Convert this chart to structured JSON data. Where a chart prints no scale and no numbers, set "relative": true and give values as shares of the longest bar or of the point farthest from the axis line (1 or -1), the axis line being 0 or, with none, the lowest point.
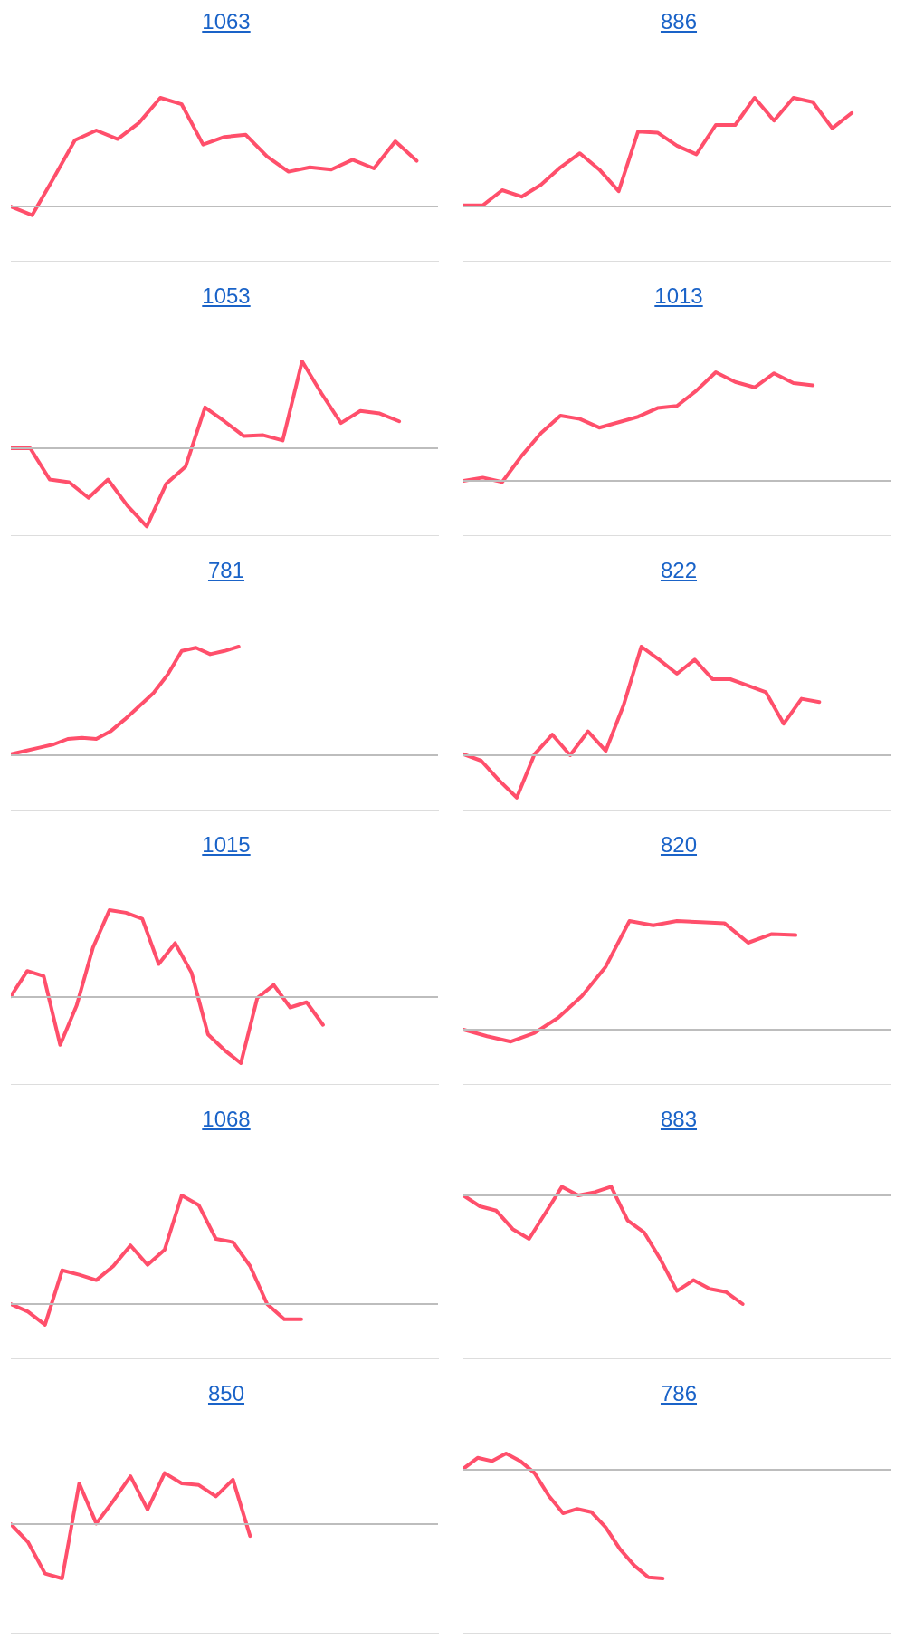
{
  "chart_data": [
    {
      "type": "line",
      "title": "1063",
      "relative": true,
      "color": "#ff4f6b",
      "categories": [
        null,
        null,
        null,
        null,
        null,
        null,
        null,
        null,
        null,
        null,
        null,
        null,
        null,
        null,
        null,
        null,
        null,
        null,
        null,
        null,
        null
      ],
      "values": [
        0,
        -0.08,
        0.26,
        0.61,
        0.7,
        0.62,
        0.77,
        1,
        0.94,
        0.57,
        0.64,
        0.66,
        0.46,
        0.32,
        0.36,
        0.34,
        0.43,
        0.35,
        0.6,
        0.42,
        null
      ]
    },
    {
      "type": "line",
      "title": "886",
      "relative": true,
      "color": "#ff4f6b",
      "categories": [
        null,
        null,
        null,
        null,
        null,
        null,
        null,
        null,
        null,
        null,
        null,
        null,
        null,
        null,
        null,
        null,
        null,
        null,
        null,
        null,
        null,
        null,
        null
      ],
      "values": [
        0.01,
        0.01,
        0.15,
        0.09,
        0.2,
        0.36,
        0.49,
        0.34,
        0.14,
        0.69,
        0.68,
        0.56,
        0.48,
        0.75,
        0.75,
        1,
        0.79,
        1,
        0.96,
        0.72,
        0.86,
        null,
        null
      ]
    },
    {
      "type": "line",
      "title": "1053",
      "relative": true,
      "color": "#ff4f6b",
      "categories": [
        null,
        null,
        null,
        null,
        null,
        null,
        null,
        null,
        null,
        null,
        null,
        null,
        null,
        null,
        null,
        null,
        null,
        null,
        null,
        null,
        null,
        null,
        null
      ],
      "values": [
        0,
        0,
        -0.36,
        -0.39,
        -0.57,
        -0.36,
        -0.66,
        -0.9,
        -0.41,
        -0.21,
        0.47,
        0.31,
        0.14,
        0.15,
        0.09,
        1,
        0.63,
        0.29,
        0.43,
        0.4,
        0.31,
        null,
        null
      ]
    },
    {
      "type": "line",
      "title": "1013",
      "relative": true,
      "color": "#ff4f6b",
      "categories": [
        null,
        null,
        null,
        null,
        null,
        null,
        null,
        null,
        null,
        null,
        null,
        null,
        null,
        null,
        null,
        null,
        null,
        null,
        null,
        null,
        null,
        null,
        null
      ],
      "values": [
        0,
        0.03,
        -0.01,
        0.23,
        0.44,
        0.6,
        0.57,
        0.49,
        0.54,
        0.59,
        0.67,
        0.69,
        0.83,
        1,
        0.91,
        0.86,
        0.99,
        0.9,
        0.88,
        null,
        null,
        null,
        null
      ]
    },
    {
      "type": "line",
      "title": "781",
      "relative": true,
      "color": "#ff4f6b",
      "categories": [
        null,
        null,
        null,
        null,
        null,
        null,
        null,
        null,
        null,
        null,
        null,
        null,
        null,
        null,
        null,
        null,
        null,
        null,
        null,
        null,
        null,
        null,
        null,
        null,
        null,
        null,
        null,
        null,
        null,
        null,
        null
      ],
      "values": [
        0.01,
        0.04,
        0.07,
        0.1,
        0.15,
        0.16,
        0.15,
        0.22,
        0.33,
        0.45,
        0.57,
        0.74,
        0.96,
        0.99,
        0.93,
        0.96,
        1,
        null,
        null,
        null,
        null,
        null,
        null,
        null,
        null,
        null,
        null,
        null,
        null,
        null,
        null
      ]
    },
    {
      "type": "line",
      "title": "822",
      "relative": true,
      "color": "#ff4f6b",
      "categories": [
        null,
        null,
        null,
        null,
        null,
        null,
        null,
        null,
        null,
        null,
        null,
        null,
        null,
        null,
        null,
        null,
        null,
        null,
        null,
        null,
        null,
        null,
        null,
        null,
        null
      ],
      "values": [
        0.01,
        -0.05,
        -0.23,
        -0.39,
        0.01,
        0.19,
        0,
        0.22,
        0.04,
        0.46,
        1,
        0.88,
        0.75,
        0.88,
        0.7,
        0.7,
        0.64,
        0.58,
        0.29,
        0.52,
        0.49,
        null,
        null,
        null,
        null
      ]
    },
    {
      "type": "line",
      "title": "1015",
      "relative": true,
      "color": "#ff4f6b",
      "categories": [
        null,
        null,
        null,
        null,
        null,
        null,
        null,
        null,
        null,
        null,
        null,
        null,
        null,
        null,
        null,
        null,
        null,
        null,
        null,
        null,
        null,
        null,
        null,
        null,
        null,
        null,
        null
      ],
      "values": [
        0.01,
        0.3,
        0.24,
        -0.55,
        -0.1,
        0.57,
        1,
        0.97,
        0.9,
        0.38,
        0.62,
        0.28,
        -0.43,
        -0.61,
        -0.76,
        -0.01,
        0.14,
        -0.12,
        -0.06,
        -0.32,
        null,
        null,
        null,
        null,
        null,
        null,
        null
      ]
    },
    {
      "type": "line",
      "title": "820",
      "relative": true,
      "color": "#ff4f6b",
      "categories": [
        null,
        null,
        null,
        null,
        null,
        null,
        null,
        null,
        null,
        null,
        null,
        null,
        null,
        null,
        null,
        null,
        null,
        null,
        null
      ],
      "values": [
        0,
        -0.06,
        -0.11,
        -0.03,
        0.11,
        0.31,
        0.58,
        1,
        0.96,
        1,
        0.99,
        0.98,
        0.8,
        0.88,
        0.87,
        null,
        null,
        null,
        null
      ]
    },
    {
      "type": "line",
      "title": "1068",
      "relative": true,
      "color": "#ff4f6b",
      "categories": [
        null,
        null,
        null,
        null,
        null,
        null,
        null,
        null,
        null,
        null,
        null,
        null,
        null,
        null,
        null,
        null,
        null,
        null,
        null,
        null,
        null,
        null,
        null,
        null,
        null,
        null
      ],
      "values": [
        0,
        -0.07,
        -0.19,
        0.31,
        0.27,
        0.22,
        0.35,
        0.54,
        0.36,
        0.5,
        1,
        0.91,
        0.6,
        0.57,
        0.35,
        0,
        -0.14,
        -0.14,
        null,
        null,
        null,
        null,
        null,
        null,
        null,
        null
      ]
    },
    {
      "type": "line",
      "title": "883",
      "relative": true,
      "color": "#ff4f6b",
      "categories": [
        null,
        null,
        null,
        null,
        null,
        null,
        null,
        null,
        null,
        null,
        null,
        null,
        null,
        null,
        null,
        null,
        null,
        null,
        null,
        null,
        null,
        null,
        null,
        null,
        null,
        null,
        null
      ],
      "values": [
        0,
        -0.1,
        -0.14,
        -0.31,
        -0.4,
        -0.16,
        0.08,
        0,
        0.03,
        0.08,
        -0.23,
        -0.34,
        -0.59,
        -0.88,
        -0.78,
        -0.86,
        -0.89,
        -1,
        null,
        null,
        null,
        null,
        null,
        null,
        null,
        null,
        null
      ]
    },
    {
      "type": "line",
      "title": "850",
      "relative": true,
      "color": "#ff4f6b",
      "categories": [
        null,
        null,
        null,
        null,
        null,
        null,
        null,
        null,
        null,
        null,
        null,
        null,
        null,
        null,
        null,
        null,
        null,
        null,
        null,
        null,
        null,
        null,
        null,
        null,
        null,
        null
      ],
      "values": [
        0,
        -0.33,
        -0.91,
        -1,
        0.75,
        0.01,
        0.43,
        0.88,
        0.27,
        0.94,
        0.75,
        0.72,
        0.51,
        0.82,
        -0.22,
        null,
        null,
        null,
        null,
        null,
        null,
        null,
        null,
        null,
        null,
        null
      ]
    },
    {
      "type": "line",
      "title": "786",
      "relative": true,
      "color": "#ff4f6b",
      "categories": [
        null,
        null,
        null,
        null,
        null,
        null,
        null,
        null,
        null,
        null,
        null,
        null,
        null,
        null,
        null,
        null,
        null,
        null,
        null,
        null,
        null,
        null,
        null,
        null,
        null,
        null,
        null,
        null,
        null,
        null,
        null
      ],
      "values": [
        0.01,
        0.11,
        0.08,
        0.15,
        0.08,
        -0.03,
        -0.24,
        -0.4,
        -0.36,
        -0.39,
        -0.53,
        -0.73,
        -0.88,
        -0.99,
        -1,
        null,
        null,
        null,
        null,
        null,
        null,
        null,
        null,
        null,
        null,
        null,
        null,
        null,
        null,
        null,
        null
      ]
    }
  ]
}
